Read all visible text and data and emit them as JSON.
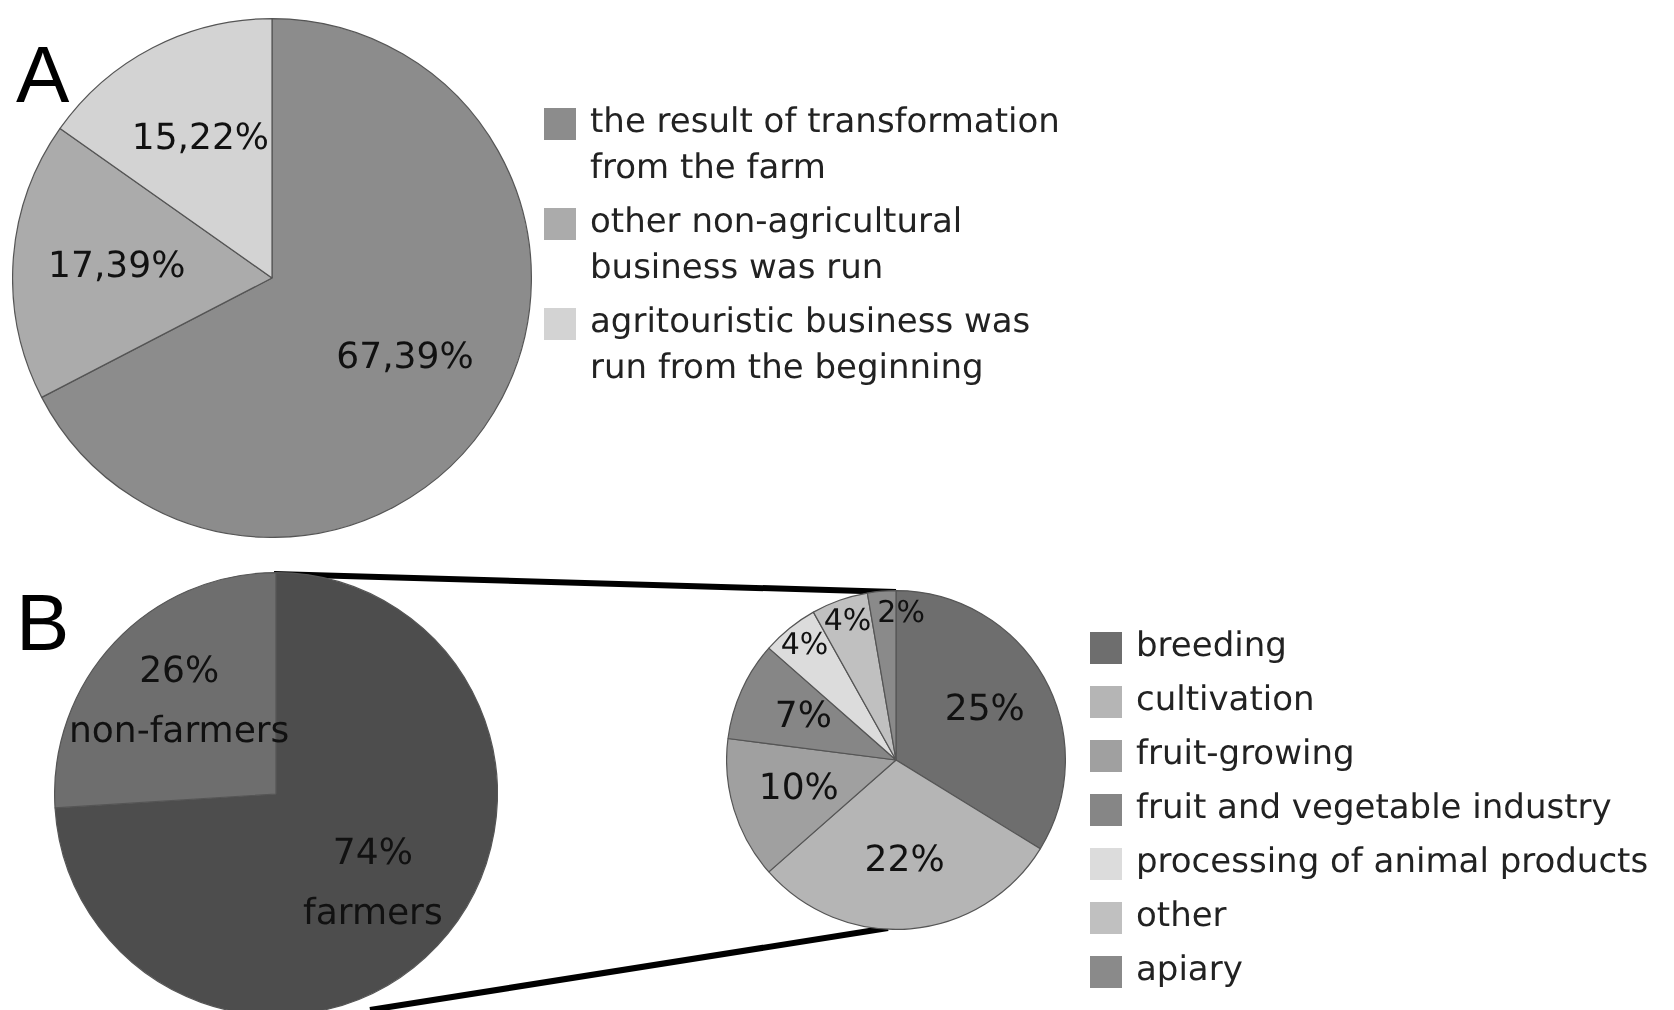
{
  "chart_data": [
    {
      "type": "pie",
      "title": "A",
      "categories": [
        "the result of transformation from the farm",
        "other non-agricultural business was run",
        "agritouristic business was run from the beginning"
      ],
      "values": [
        67.39,
        17.39,
        15.22
      ],
      "colors": [
        "#8c8c8c",
        "#ababab",
        "#d3d3d3"
      ],
      "value_labels": [
        "67,39%",
        "17,39%",
        "15,22%"
      ],
      "legend": "right"
    },
    {
      "type": "pie",
      "title": "B",
      "categories": [
        "farmers",
        "non-farmers"
      ],
      "values": [
        74,
        26
      ],
      "colors": [
        "#4d4d4d",
        "#6e6e6e"
      ],
      "value_labels": [
        "74%",
        "26%"
      ]
    },
    {
      "type": "pie",
      "categories": [
        "breeding",
        "cultivation",
        "fruit-growing",
        "fruit and vegetable industry",
        "processing of animal products",
        "other",
        "apiary"
      ],
      "values": [
        25,
        22,
        10,
        7,
        4,
        4,
        2
      ],
      "colors": [
        "#6e6e6e",
        "#b5b5b5",
        "#a0a0a0",
        "#868686",
        "#dcdcdc",
        "#c0c0c0",
        "#8a8a8a"
      ],
      "value_labels": [
        "25%",
        "22%",
        "10%",
        "7%",
        "4%",
        "4%",
        "2%"
      ],
      "legend": "right"
    }
  ]
}
